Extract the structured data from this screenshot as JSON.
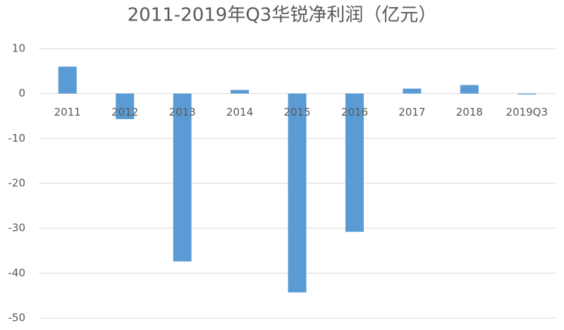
{
  "chart_data": {
    "type": "bar",
    "title": "2011-2019年Q3华锐净利润（亿元）",
    "categories": [
      "2011",
      "2012",
      "2013",
      "2014",
      "2015",
      "2016",
      "2017",
      "2018",
      "2019Q3"
    ],
    "values": [
      6.0,
      -5.7,
      -37.4,
      0.8,
      -44.3,
      -30.8,
      1.1,
      1.9,
      -0.2
    ],
    "color": "#5b9bd5",
    "ylim": [
      -50,
      10
    ],
    "yticks": [
      -50,
      -40,
      -30,
      -20,
      -10,
      0,
      10
    ],
    "grid": true
  }
}
